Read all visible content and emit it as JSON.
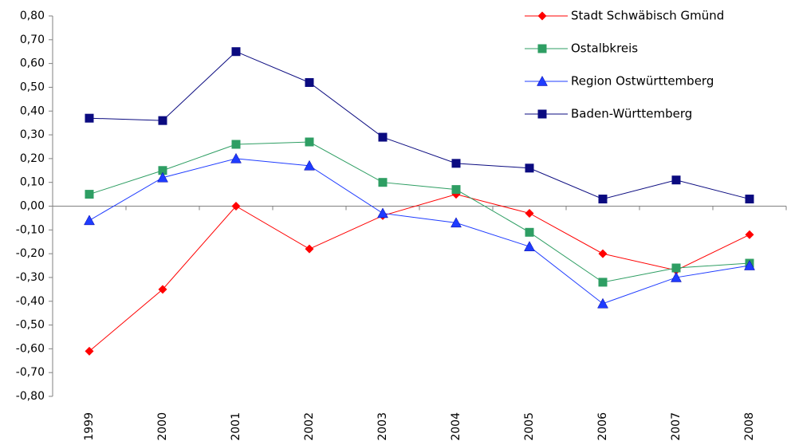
{
  "chart_data": {
    "type": "line",
    "categories": [
      "1999",
      "2000",
      "2001",
      "2002",
      "2003",
      "2004",
      "2005",
      "2006",
      "2007",
      "2008"
    ],
    "series": [
      {
        "name": "Stadt Schwäbisch Gmünd",
        "color": "#ff0000",
        "marker": "diamond",
        "values": [
          -0.61,
          -0.35,
          0.0,
          -0.18,
          -0.04,
          0.05,
          -0.03,
          -0.2,
          -0.27,
          -0.12
        ]
      },
      {
        "name": "Ostalbkreis",
        "color": "#2e9e63",
        "marker": "square",
        "values": [
          0.05,
          0.15,
          0.26,
          0.27,
          0.1,
          0.07,
          -0.11,
          -0.32,
          -0.26,
          -0.24
        ]
      },
      {
        "name": "Region Ostwürttemberg",
        "color": "#1f3cff",
        "marker": "triangle",
        "values": [
          -0.06,
          0.12,
          0.2,
          0.17,
          -0.03,
          -0.07,
          -0.17,
          -0.41,
          -0.3,
          -0.25
        ]
      },
      {
        "name": "Baden-Württemberg",
        "color": "#0b0b80",
        "marker": "square",
        "values": [
          0.37,
          0.36,
          0.65,
          0.52,
          0.29,
          0.18,
          0.16,
          0.03,
          0.11,
          0.03
        ]
      }
    ],
    "ylim": [
      -0.8,
      0.8
    ],
    "yticks": [
      {
        "value": -0.8,
        "label": "-0,80"
      },
      {
        "value": -0.7,
        "label": "-0,70"
      },
      {
        "value": -0.6,
        "label": "-0,60"
      },
      {
        "value": -0.5,
        "label": "-0,50"
      },
      {
        "value": -0.4,
        "label": "-0,40"
      },
      {
        "value": -0.3,
        "label": "-0,30"
      },
      {
        "value": -0.2,
        "label": "-0,20"
      },
      {
        "value": -0.1,
        "label": "-0,10"
      },
      {
        "value": 0,
        "label": "0,00"
      },
      {
        "value": 0.1,
        "label": "0,10"
      },
      {
        "value": 0.2,
        "label": "0,20"
      },
      {
        "value": 0.3,
        "label": "0,30"
      },
      {
        "value": 0.4,
        "label": "0,40"
      },
      {
        "value": 0.5,
        "label": "0,50"
      },
      {
        "value": 0.6,
        "label": "0,60"
      },
      {
        "value": 0.7,
        "label": "0,70"
      },
      {
        "value": 0.8,
        "label": "0,80"
      }
    ],
    "grid": false,
    "legend": "top-right"
  }
}
